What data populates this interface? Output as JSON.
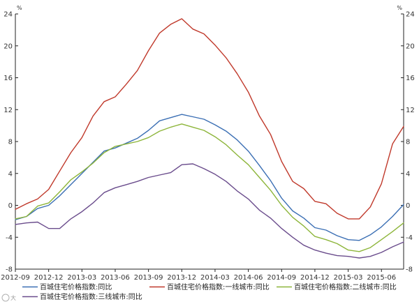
{
  "chart_data": {
    "type": "line",
    "unit_left": "%",
    "unit_right": "%",
    "ylim": [
      -8,
      24
    ],
    "yticks": [
      24,
      20,
      16,
      12,
      8,
      4,
      0,
      -4,
      -8
    ],
    "xlim": [
      "2012-09",
      "2015-08"
    ],
    "xticks": [
      "2012-09",
      "2012-12",
      "2013-03",
      "2013-06",
      "2013-09",
      "2013-12",
      "2014-03",
      "2014-06",
      "2014-09",
      "2014-12",
      "2015-03",
      "2015-06"
    ],
    "x": [
      "2012-09",
      "2012-10",
      "2012-11",
      "2012-12",
      "2013-01",
      "2013-02",
      "2013-03",
      "2013-04",
      "2013-05",
      "2013-06",
      "2013-07",
      "2013-08",
      "2013-09",
      "2013-10",
      "2013-11",
      "2013-12",
      "2014-01",
      "2014-02",
      "2014-03",
      "2014-04",
      "2014-05",
      "2014-06",
      "2014-07",
      "2014-08",
      "2014-09",
      "2014-10",
      "2014-11",
      "2014-12",
      "2015-01",
      "2015-02",
      "2015-03",
      "2015-04",
      "2015-05",
      "2015-06",
      "2015-07",
      "2015-08"
    ],
    "series": [
      {
        "name": "百城住宅价格指数:同比",
        "color": "#3b6fb4",
        "values": [
          -1.8,
          -1.4,
          -0.4,
          0.0,
          1.2,
          2.6,
          4.0,
          5.4,
          6.8,
          7.2,
          7.8,
          8.4,
          9.4,
          10.6,
          11.0,
          11.4,
          11.1,
          10.8,
          10.1,
          9.3,
          8.2,
          6.8,
          5.0,
          3.1,
          0.9,
          -0.7,
          -1.6,
          -2.8,
          -3.1,
          -3.8,
          -4.3,
          -4.4,
          -3.7,
          -2.7,
          -1.4,
          0.1
        ]
      },
      {
        "name": "百城住宅价格指数:一线城市:同比",
        "color": "#c0392b",
        "values": [
          -0.5,
          0.2,
          0.8,
          2.0,
          4.3,
          6.6,
          8.5,
          11.2,
          13.0,
          13.6,
          15.2,
          16.9,
          19.4,
          21.6,
          22.7,
          23.4,
          22.1,
          21.5,
          20.1,
          18.5,
          16.5,
          14.2,
          11.2,
          8.9,
          5.5,
          3.0,
          2.1,
          0.5,
          0.2,
          -1.0,
          -1.7,
          -1.7,
          -0.2,
          2.7,
          7.7,
          9.9
        ]
      },
      {
        "name": "百城住宅价格指数:二线城市:同比",
        "color": "#8db53a",
        "values": [
          -1.7,
          -1.4,
          -0.1,
          0.3,
          1.7,
          3.2,
          4.2,
          5.3,
          6.6,
          7.4,
          7.7,
          8.0,
          8.5,
          9.3,
          9.8,
          10.2,
          9.8,
          9.4,
          8.6,
          7.6,
          6.3,
          5.1,
          3.5,
          1.9,
          0.0,
          -1.5,
          -2.6,
          -3.9,
          -4.3,
          -4.8,
          -5.6,
          -5.8,
          -5.3,
          -4.3,
          -3.3,
          -2.2
        ]
      },
      {
        "name": "百城住宅价格指数:三线城市:同比",
        "color": "#6a4c8c",
        "values": [
          -2.4,
          -2.2,
          -2.1,
          -2.9,
          -2.9,
          -1.7,
          -0.8,
          0.3,
          1.6,
          2.2,
          2.6,
          3.0,
          3.5,
          3.8,
          4.1,
          5.1,
          5.2,
          4.6,
          3.9,
          3.0,
          1.8,
          0.8,
          -0.6,
          -1.6,
          -2.9,
          -4.0,
          -5.0,
          -5.6,
          -6.0,
          -6.3,
          -6.4,
          -6.6,
          -6.4,
          -5.9,
          -5.2,
          -4.6
        ]
      }
    ],
    "grid": false,
    "legend_position": "bottom"
  },
  "watermark": {
    "text": "大"
  }
}
